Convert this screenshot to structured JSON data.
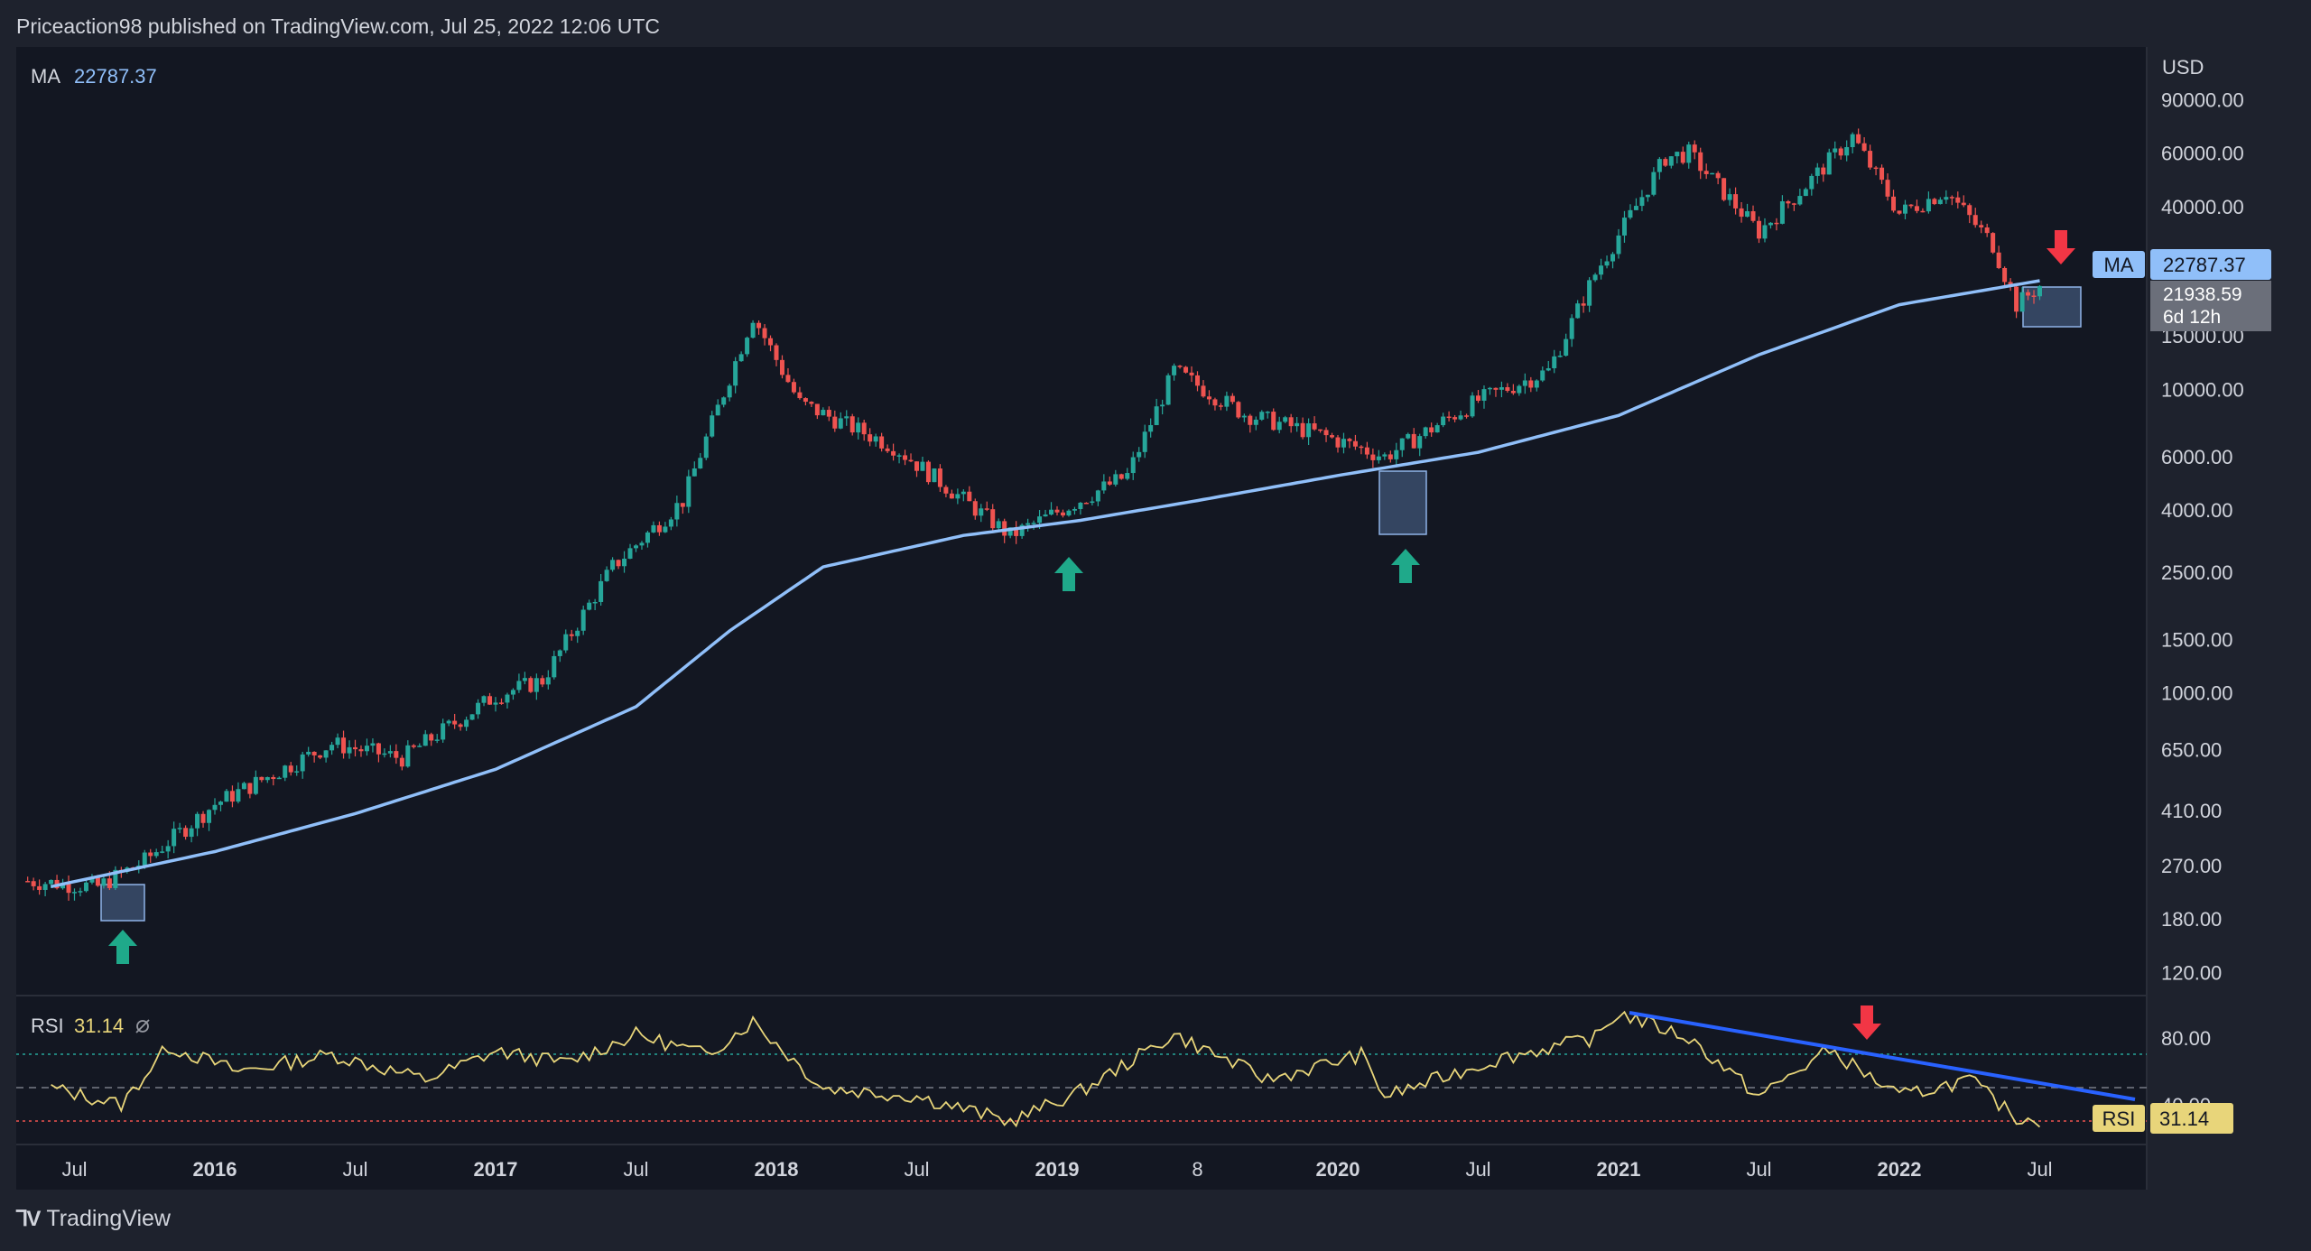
{
  "header": {
    "publisher_text": "Priceaction98 published on TradingView.com, Jul 25, 2022 12:06 UTC"
  },
  "brand": {
    "name": "TradingView"
  },
  "price_pane": {
    "currency": "USD",
    "ma_label": "MA",
    "ma_value": "22787.37",
    "price_tag": "21938.59",
    "countdown": "6d 12h",
    "price_ticks": [
      "90000.00",
      "60000.00",
      "40000.00",
      "15000.00",
      "10000.00",
      "6000.00",
      "4000.00",
      "2500.00",
      "1500.00",
      "1000.00",
      "650.00",
      "410.00",
      "270.00",
      "180.00",
      "120.00"
    ]
  },
  "rsi_pane": {
    "label": "RSI",
    "value": "31.14",
    "ticks": [
      "80.00",
      "40.00"
    ]
  },
  "time_axis": [
    "Jul",
    "2016",
    "Jul",
    "2017",
    "Jul",
    "2018",
    "Jul",
    "2019",
    "8",
    "2020",
    "Jul",
    "2021",
    "Jul",
    "2022",
    "Jul"
  ],
  "colors": {
    "up": "#26a69a",
    "down": "#ef5350",
    "ma": "#90bff9",
    "rsi": "#e8d57a",
    "arrow_up": "#1fa98a",
    "arrow_down": "#f23645",
    "trend": "#2962ff"
  },
  "chart_data": [
    {
      "type": "line",
      "title": "",
      "ylabel": "USD",
      "scale": "log",
      "ylim": [
        110,
        100000
      ],
      "series": [
        {
          "name": "",
          "x": [
            "2015-05",
            "2015-08",
            "2015-10",
            "2016-01",
            "2016-06",
            "2016-09",
            "2017-01",
            "2017-03",
            "2017-06",
            "2017-09",
            "2017-12",
            "2018-02",
            "2018-06",
            "2018-11",
            "2018-12",
            "2019-04",
            "2019-06",
            "2019-09",
            "2019-12",
            "2020-03",
            "2020-07",
            "2020-10",
            "2020-12",
            "2021-03",
            "2021-04",
            "2021-07",
            "2021-09",
            "2021-11",
            "2022-01",
            "2022-03",
            "2022-05",
            "2022-06",
            "2022-07"
          ],
          "values": [
            240,
            230,
            280,
            430,
            680,
            610,
            980,
            1100,
            2600,
            4300,
            17500,
            9000,
            6500,
            3300,
            3600,
            5200,
            11500,
            8300,
            7200,
            6000,
            9200,
            11500,
            24000,
            58000,
            60000,
            33000,
            47000,
            68000,
            38000,
            45000,
            30000,
            19000,
            21938.59
          ]
        },
        {
          "name": "MA",
          "x": [
            "2015-06",
            "2016-01",
            "2016-07",
            "2017-01",
            "2017-07",
            "2017-11",
            "2018-03",
            "2018-09",
            "2019-02",
            "2019-07",
            "2020-01",
            "2020-07",
            "2021-01",
            "2021-07",
            "2022-01",
            "2022-07"
          ],
          "values": [
            230,
            300,
            400,
            560,
            900,
            1600,
            2600,
            3300,
            3700,
            4300,
            5200,
            6200,
            8200,
            13000,
            19000,
            22787.37
          ]
        }
      ]
    },
    {
      "type": "line",
      "title": "",
      "ylim": [
        25,
        100
      ],
      "series": [
        {
          "name": "RSI",
          "x": [
            "2015-06",
            "2015-09",
            "2015-11",
            "2016-02",
            "2016-06",
            "2016-10",
            "2017-01",
            "2017-04",
            "2017-07",
            "2017-10",
            "2017-12",
            "2018-03",
            "2018-07",
            "2018-11",
            "2019-02",
            "2019-06",
            "2019-10",
            "2020-02",
            "2020-03",
            "2020-08",
            "2020-12",
            "2021-01",
            "2021-04",
            "2021-07",
            "2021-10",
            "2022-01",
            "2022-04",
            "2022-06",
            "2022-07"
          ],
          "values": [
            50,
            40,
            75,
            60,
            70,
            55,
            72,
            65,
            82,
            70,
            90,
            50,
            45,
            30,
            48,
            82,
            55,
            70,
            45,
            68,
            80,
            95,
            80,
            45,
            73,
            45,
            55,
            32,
            31.14
          ]
        }
      ]
    }
  ]
}
